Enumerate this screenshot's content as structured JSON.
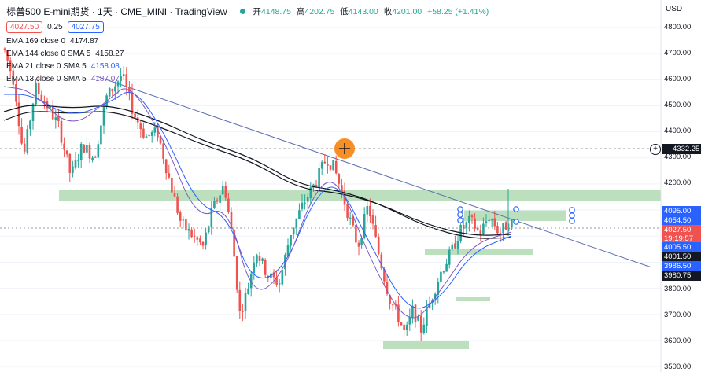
{
  "header": {
    "title": "标普500 E-mini期货 · 1天 · CME_MINI · TradingView",
    "ohlc": [
      {
        "label": "开",
        "value": "4148.75"
      },
      {
        "label": "高",
        "value": "4202.75"
      },
      {
        "label": "低",
        "value": "4143.00"
      },
      {
        "label": "收",
        "value": "4201.00"
      }
    ],
    "change": "+58.25 (+1.41%)"
  },
  "quote": {
    "sell": "4027.50",
    "spread": "0.25",
    "buy": "4027.75"
  },
  "indicators": [
    {
      "name": "EMA 169 close 0",
      "value": "4174.87",
      "color": "#131722"
    },
    {
      "name": "EMA 144 close 0 SMA 5",
      "value": "4158.27",
      "color": "#131722"
    },
    {
      "name": "EMA 21 close 0 SMA 5",
      "value": "4158.08",
      "color": "#2962ff"
    },
    {
      "name": "EMA 13 close 0 SMA 5",
      "value": "4187.07",
      "color": "#7e57c2"
    }
  ],
  "price_axis": {
    "currency": "USD",
    "ticks": [
      "4800.00",
      "4700.00",
      "4600.00",
      "4500.00",
      "4400.00",
      "4300.00",
      "4200.00",
      "3800.00",
      "3700.00",
      "3600.00",
      "3500.00"
    ],
    "crosshair_price": "4332.25"
  },
  "price_tags": [
    {
      "text": "4095.00",
      "bg": "#2962ff"
    },
    {
      "text": "4054.50",
      "bg": "#2962ff"
    },
    {
      "text": "4027.50",
      "bg": "#ef5350"
    },
    {
      "text": "19:19:57",
      "bg": "#ef5350"
    },
    {
      "text": "4005.50",
      "bg": "#2962ff"
    },
    {
      "text": "4001.50",
      "bg": "#131722"
    },
    {
      "text": "3986.50",
      "bg": "#2962ff"
    },
    {
      "text": "3980.75",
      "bg": "#131722"
    }
  ],
  "colors": {
    "up": "#26a69a",
    "down": "#ef5350",
    "zone": "#a5d6a7",
    "trendline": "#5b6fb0",
    "crosshair_dot": "#f57c00"
  }
}
